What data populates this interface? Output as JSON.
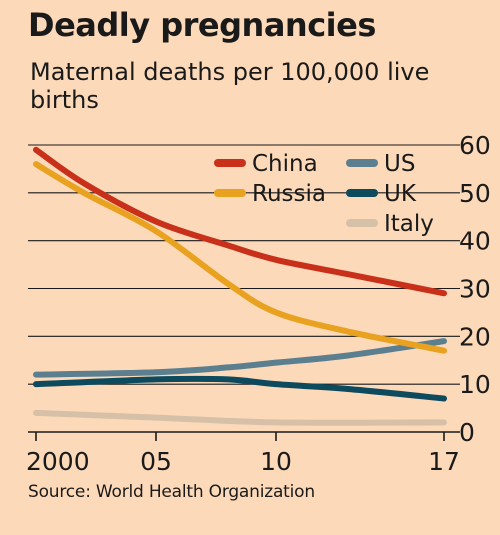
{
  "title": "Deadly pregnancies",
  "subtitle": "Maternal deaths per 100,000 live births",
  "source": "Source: World Health Organization",
  "chart_data": {
    "type": "line",
    "x": [
      2000,
      2005,
      2010,
      2017
    ],
    "x_tick_labels": [
      "2000",
      "05",
      "10",
      "17"
    ],
    "ylim": [
      0,
      60
    ],
    "y_ticks": [
      0,
      10,
      20,
      30,
      40,
      50,
      60
    ],
    "y_tick_labels": [
      "0",
      "10",
      "20",
      "30",
      "40",
      "50",
      "60"
    ],
    "grid": "horizontal",
    "legend_position": "top-right",
    "series": [
      {
        "name": "China",
        "color": "#c8301a",
        "x": [
          2000,
          2002,
          2005,
          2008,
          2010,
          2013,
          2017
        ],
        "values": [
          59,
          52,
          44,
          39,
          36,
          33,
          29
        ]
      },
      {
        "name": "Russia",
        "color": "#e9a21f",
        "x": [
          2000,
          2002,
          2005,
          2008,
          2010,
          2013,
          2017
        ],
        "values": [
          56,
          50,
          42,
          31,
          25,
          21,
          17
        ]
      },
      {
        "name": "US",
        "color": "#5b7f8f",
        "x": [
          2000,
          2005,
          2008,
          2010,
          2013,
          2017
        ],
        "values": [
          12,
          12.5,
          13.5,
          14.5,
          16,
          19
        ]
      },
      {
        "name": "UK",
        "color": "#0d4a5e",
        "x": [
          2000,
          2005,
          2008,
          2010,
          2013,
          2017
        ],
        "values": [
          10,
          11,
          11,
          10,
          9,
          7
        ]
      },
      {
        "name": "Italy",
        "color": "#d7c0a8",
        "x": [
          2000,
          2005,
          2010,
          2017
        ],
        "values": [
          4,
          3,
          2,
          2
        ]
      }
    ]
  }
}
